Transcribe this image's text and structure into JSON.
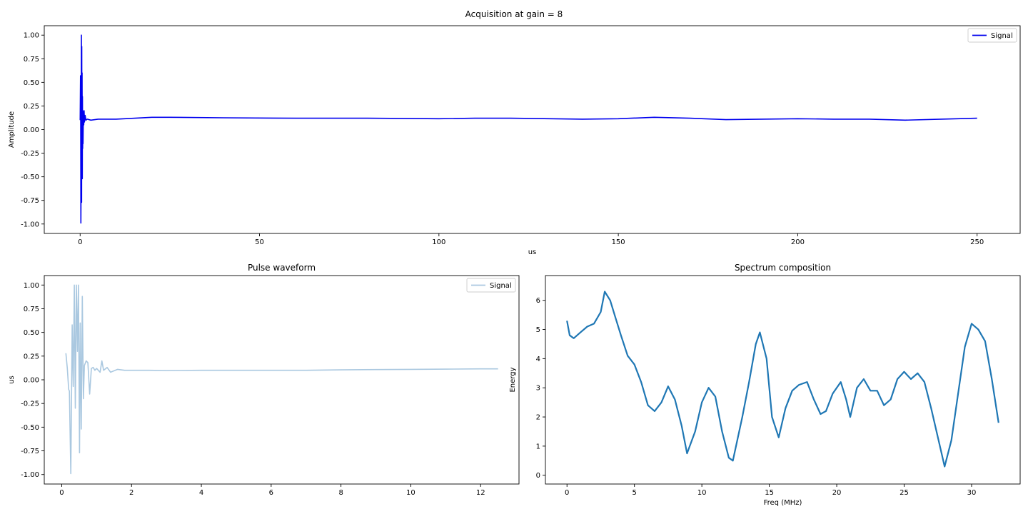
{
  "figure": {
    "suptitle": "Acquisition at gain = 8"
  },
  "chart_data": [
    {
      "id": "top",
      "type": "line",
      "title": "",
      "xlabel": "us",
      "ylabel": "Amplitude",
      "xlim": [
        -10,
        262
      ],
      "ylim": [
        -1.1,
        1.1
      ],
      "xticks": [
        0,
        50,
        100,
        150,
        200,
        250
      ],
      "yticks": [
        -1.0,
        -0.75,
        -0.5,
        -0.25,
        0.0,
        0.25,
        0.5,
        0.75,
        1.0
      ],
      "legend": "top-right",
      "grid": false,
      "color": "#0000ee",
      "series": [
        {
          "name": "Signal",
          "x": [
            0,
            0.1,
            0.15,
            0.2,
            0.25,
            0.3,
            0.35,
            0.4,
            0.45,
            0.5,
            0.55,
            0.6,
            0.65,
            0.7,
            0.75,
            0.8,
            0.9,
            1.0,
            1.1,
            1.2,
            1.4,
            1.6,
            2,
            3,
            5,
            10,
            20,
            25,
            40,
            60,
            80,
            100,
            110,
            120,
            140,
            150,
            160,
            170,
            180,
            190,
            200,
            210,
            220,
            230,
            240,
            250
          ],
          "y": [
            0.1,
            0.57,
            0.3,
            -0.99,
            -0.6,
            0.2,
            1.0,
            -0.77,
            0.88,
            -0.35,
            0.6,
            -0.52,
            0.35,
            -0.2,
            0.2,
            -0.15,
            0.19,
            0.05,
            0.2,
            0.08,
            0.15,
            0.1,
            0.11,
            0.1,
            0.11,
            0.11,
            0.13,
            0.13,
            0.125,
            0.12,
            0.12,
            0.115,
            0.12,
            0.12,
            0.11,
            0.115,
            0.13,
            0.12,
            0.105,
            0.11,
            0.115,
            0.11,
            0.11,
            0.1,
            0.11,
            0.12
          ]
        }
      ]
    },
    {
      "id": "bottom-left",
      "type": "line",
      "title": "Pulse waveform",
      "xlabel": "",
      "ylabel": "us",
      "xlim": [
        -0.5,
        13.1
      ],
      "ylim": [
        -1.1,
        1.1
      ],
      "xticks": [
        0,
        2,
        4,
        6,
        8,
        10,
        12
      ],
      "yticks": [
        -1.0,
        -0.75,
        -0.5,
        -0.25,
        0.0,
        0.25,
        0.5,
        0.75,
        1.0
      ],
      "legend": "top-right",
      "grid": false,
      "color": "#aac8e0",
      "series": [
        {
          "name": "Signal",
          "x": [
            0.12,
            0.16,
            0.2,
            0.22,
            0.26,
            0.3,
            0.33,
            0.36,
            0.39,
            0.42,
            0.45,
            0.48,
            0.51,
            0.53,
            0.56,
            0.59,
            0.62,
            0.65,
            0.7,
            0.75,
            0.8,
            0.85,
            0.9,
            0.95,
            1.0,
            1.1,
            1.15,
            1.2,
            1.3,
            1.4,
            1.6,
            1.8,
            2.0,
            2.5,
            3,
            4,
            5,
            6,
            7,
            8,
            9,
            10,
            11,
            12,
            12.5
          ],
          "y": [
            0.28,
            0.12,
            -0.1,
            -0.12,
            -0.99,
            0.58,
            -0.07,
            1.0,
            -0.3,
            1.0,
            0.3,
            1.0,
            -0.77,
            0.6,
            -0.52,
            0.88,
            -0.2,
            0.15,
            0.2,
            0.18,
            -0.15,
            0.12,
            0.13,
            0.1,
            0.12,
            0.08,
            0.2,
            0.1,
            0.13,
            0.08,
            0.11,
            0.1,
            0.1,
            0.1,
            0.098,
            0.1,
            0.1,
            0.1,
            0.1,
            0.105,
            0.108,
            0.11,
            0.112,
            0.115,
            0.115
          ]
        }
      ]
    },
    {
      "id": "bottom-right",
      "type": "line",
      "title": "Spectrum composition",
      "xlabel": "Freq (MHz)",
      "ylabel": "Energy",
      "xlim": [
        -1.6,
        33.6
      ],
      "ylim": [
        -0.3,
        6.85
      ],
      "xticks": [
        0,
        5,
        10,
        15,
        20,
        25,
        30
      ],
      "yticks": [
        0,
        1,
        2,
        3,
        4,
        5,
        6
      ],
      "legend": "none",
      "grid": false,
      "color": "#1f77b4",
      "series": [
        {
          "name": "",
          "x": [
            0,
            0.2,
            0.5,
            1,
            1.5,
            2,
            2.5,
            2.8,
            3.2,
            3.6,
            4,
            4.5,
            5,
            5.5,
            6,
            6.5,
            7,
            7.5,
            8,
            8.5,
            8.9,
            9.5,
            10,
            10.5,
            11,
            11.5,
            12,
            12.3,
            13,
            13.5,
            14,
            14.3,
            14.8,
            15.2,
            15.7,
            16.2,
            16.7,
            17.2,
            17.8,
            18.3,
            18.8,
            19.2,
            19.7,
            20.3,
            20.7,
            21,
            21.5,
            22,
            22.5,
            23,
            23.5,
            24,
            24.5,
            25,
            25.5,
            26,
            26.5,
            27,
            27.5,
            28,
            28.5,
            29,
            29.5,
            30,
            30.5,
            31,
            31.5,
            32
          ],
          "y": [
            5.3,
            4.8,
            4.7,
            4.9,
            5.1,
            5.2,
            5.6,
            6.3,
            6.0,
            5.4,
            4.8,
            4.1,
            3.8,
            3.2,
            2.4,
            2.2,
            2.5,
            3.05,
            2.6,
            1.7,
            0.75,
            1.5,
            2.5,
            3.0,
            2.7,
            1.5,
            0.6,
            0.5,
            2.0,
            3.2,
            4.5,
            4.9,
            4.0,
            2.0,
            1.3,
            2.3,
            2.9,
            3.1,
            3.2,
            2.6,
            2.1,
            2.2,
            2.8,
            3.2,
            2.6,
            2.0,
            3.0,
            3.3,
            2.9,
            2.9,
            2.4,
            2.6,
            3.3,
            3.55,
            3.3,
            3.5,
            3.2,
            2.3,
            1.3,
            0.3,
            1.2,
            2.8,
            4.4,
            5.2,
            5.0,
            4.6,
            3.3,
            1.8
          ]
        }
      ]
    }
  ]
}
